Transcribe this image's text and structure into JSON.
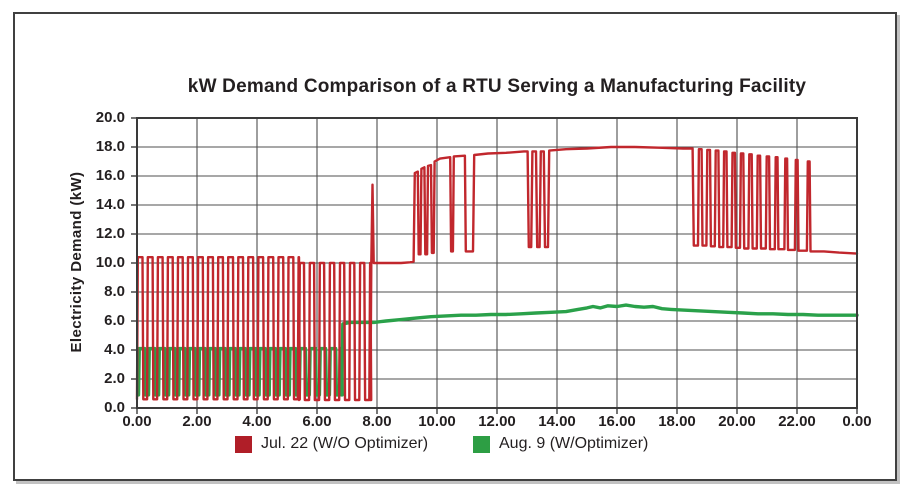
{
  "chart_data": {
    "type": "line",
    "title": "kW Demand Comparison of a RTU Serving a Manufacturing Facility",
    "xlabel": "",
    "ylabel": "Electricity Demand (kW)",
    "x_unit": "hour of day",
    "x_range_hours": [
      0,
      24
    ],
    "ylim": [
      0,
      20
    ],
    "y_tick_step": 2,
    "grid": true,
    "legend_position": "bottom",
    "x_tick_labels": [
      "0.00",
      "2.00",
      "4.00",
      "6.00",
      "8.00",
      "10.00",
      "12.00",
      "14.00",
      "16.00",
      "18.00",
      "20.00",
      "22.00",
      "0.00"
    ],
    "y_tick_labels": [
      "20.0",
      "18.0",
      "16.0",
      "14.0",
      "12.0",
      "10.0",
      "8.0",
      "6.0",
      "4.0",
      "2.0",
      "0.0"
    ],
    "colors": {
      "red_line": "#c1272d",
      "red_swatch": "#b01e28",
      "green_line": "#2aa14a",
      "green_swatch": "#2d9e44",
      "grid": "#4f4f4f",
      "frame": "#3a3a3a",
      "text": "#231f20"
    },
    "series": [
      {
        "name": "Jul. 22 (W/O Optimizer)",
        "color": "#c1272d",
        "swatch": "#b01e28",
        "width": 2.4,
        "z": 2,
        "square_segments": [
          {
            "t0": 0.0,
            "t1": 5.4,
            "period": 0.335,
            "duty": 0.55,
            "high": 10.4,
            "low": 0.6
          },
          {
            "t0": 5.4,
            "t1": 7.78,
            "period": 0.335,
            "duty": 0.5,
            "high": 10.0,
            "low": 0.55
          }
        ],
        "points": [
          [
            7.78,
            0.55
          ],
          [
            7.81,
            10.0
          ],
          [
            7.85,
            15.4
          ],
          [
            7.89,
            10.0
          ],
          [
            8.3,
            10.0
          ],
          [
            8.8,
            10.0
          ],
          [
            9.1,
            10.05
          ],
          [
            9.22,
            10.1
          ],
          [
            9.26,
            16.2
          ],
          [
            9.36,
            16.3
          ],
          [
            9.39,
            10.6
          ],
          [
            9.45,
            10.6
          ],
          [
            9.48,
            16.5
          ],
          [
            9.58,
            16.6
          ],
          [
            9.61,
            10.6
          ],
          [
            9.67,
            10.6
          ],
          [
            9.7,
            16.7
          ],
          [
            9.8,
            16.75
          ],
          [
            9.83,
            10.7
          ],
          [
            9.89,
            10.7
          ],
          [
            9.92,
            17.0
          ],
          [
            10.1,
            17.2
          ],
          [
            10.44,
            17.3
          ],
          [
            10.47,
            10.8
          ],
          [
            10.53,
            10.8
          ],
          [
            10.56,
            17.35
          ],
          [
            10.93,
            17.4
          ],
          [
            10.96,
            10.8
          ],
          [
            11.2,
            10.8
          ],
          [
            11.24,
            17.45
          ],
          [
            11.7,
            17.55
          ],
          [
            12.3,
            17.6
          ],
          [
            12.9,
            17.7
          ],
          [
            13.02,
            17.7
          ],
          [
            13.06,
            11.1
          ],
          [
            13.14,
            11.1
          ],
          [
            13.18,
            17.7
          ],
          [
            13.3,
            17.7
          ],
          [
            13.34,
            11.1
          ],
          [
            13.42,
            11.1
          ],
          [
            13.46,
            17.7
          ],
          [
            13.56,
            17.7
          ],
          [
            13.6,
            11.1
          ],
          [
            13.7,
            11.1
          ],
          [
            13.74,
            17.75
          ],
          [
            14.3,
            17.85
          ],
          [
            15.0,
            17.9
          ],
          [
            15.8,
            18.0
          ],
          [
            16.6,
            18.0
          ],
          [
            17.4,
            17.95
          ],
          [
            18.2,
            17.9
          ],
          [
            18.52,
            17.9
          ],
          [
            18.56,
            11.2
          ],
          [
            18.7,
            11.2
          ],
          [
            18.73,
            17.85
          ],
          [
            18.82,
            17.85
          ],
          [
            18.85,
            11.2
          ],
          [
            18.98,
            11.2
          ],
          [
            19.01,
            17.8
          ],
          [
            19.1,
            17.8
          ],
          [
            19.13,
            11.15
          ],
          [
            19.26,
            11.15
          ],
          [
            19.29,
            17.75
          ],
          [
            19.38,
            17.75
          ],
          [
            19.41,
            11.1
          ],
          [
            19.54,
            11.1
          ],
          [
            19.57,
            17.7
          ],
          [
            19.65,
            17.7
          ],
          [
            19.68,
            11.1
          ],
          [
            19.82,
            11.1
          ],
          [
            19.85,
            17.6
          ],
          [
            19.93,
            17.6
          ],
          [
            19.96,
            11.05
          ],
          [
            20.1,
            11.05
          ],
          [
            20.13,
            17.55
          ],
          [
            20.21,
            17.55
          ],
          [
            20.24,
            11.0
          ],
          [
            20.38,
            11.0
          ],
          [
            20.41,
            17.5
          ],
          [
            20.49,
            17.5
          ],
          [
            20.52,
            11.0
          ],
          [
            20.66,
            11.0
          ],
          [
            20.69,
            17.4
          ],
          [
            20.77,
            17.4
          ],
          [
            20.8,
            11.0
          ],
          [
            20.96,
            11.0
          ],
          [
            20.99,
            17.35
          ],
          [
            21.07,
            17.35
          ],
          [
            21.1,
            10.95
          ],
          [
            21.26,
            10.95
          ],
          [
            21.29,
            17.3
          ],
          [
            21.35,
            17.3
          ],
          [
            21.38,
            10.95
          ],
          [
            21.58,
            10.95
          ],
          [
            21.61,
            17.2
          ],
          [
            21.67,
            17.2
          ],
          [
            21.7,
            10.9
          ],
          [
            21.93,
            10.9
          ],
          [
            21.96,
            17.1
          ],
          [
            22.02,
            17.1
          ],
          [
            22.05,
            10.85
          ],
          [
            22.33,
            10.85
          ],
          [
            22.36,
            17.0
          ],
          [
            22.42,
            17.0
          ],
          [
            22.45,
            10.8
          ],
          [
            22.9,
            10.8
          ],
          [
            23.4,
            10.72
          ],
          [
            24.0,
            10.65
          ]
        ]
      },
      {
        "name": "Aug. 9 (W/Optimizer)",
        "color": "#2aa14a",
        "swatch": "#2d9e44",
        "width": 3.4,
        "z": 1,
        "square_segments": [
          {
            "t0": 0.05,
            "t1": 6.82,
            "period": 0.335,
            "duty": 0.62,
            "high": 4.1,
            "low": 0.9
          }
        ],
        "points": [
          [
            6.82,
            0.9
          ],
          [
            6.86,
            5.8
          ],
          [
            7.1,
            5.9
          ],
          [
            7.5,
            5.9
          ],
          [
            7.9,
            5.9
          ],
          [
            8.3,
            6.0
          ],
          [
            8.8,
            6.1
          ],
          [
            9.3,
            6.2
          ],
          [
            9.8,
            6.3
          ],
          [
            10.3,
            6.35
          ],
          [
            10.8,
            6.4
          ],
          [
            11.3,
            6.4
          ],
          [
            11.8,
            6.45
          ],
          [
            12.3,
            6.45
          ],
          [
            12.8,
            6.5
          ],
          [
            13.3,
            6.55
          ],
          [
            13.8,
            6.6
          ],
          [
            14.3,
            6.65
          ],
          [
            14.7,
            6.8
          ],
          [
            15.0,
            6.9
          ],
          [
            15.2,
            7.0
          ],
          [
            15.45,
            6.9
          ],
          [
            15.7,
            7.05
          ],
          [
            16.0,
            7.0
          ],
          [
            16.3,
            7.1
          ],
          [
            16.6,
            7.0
          ],
          [
            16.9,
            6.95
          ],
          [
            17.2,
            7.0
          ],
          [
            17.5,
            6.85
          ],
          [
            17.8,
            6.8
          ],
          [
            18.2,
            6.75
          ],
          [
            18.7,
            6.7
          ],
          [
            19.2,
            6.65
          ],
          [
            19.7,
            6.6
          ],
          [
            20.2,
            6.55
          ],
          [
            20.7,
            6.5
          ],
          [
            21.2,
            6.5
          ],
          [
            21.7,
            6.45
          ],
          [
            22.2,
            6.45
          ],
          [
            22.7,
            6.4
          ],
          [
            23.2,
            6.4
          ],
          [
            23.6,
            6.4
          ],
          [
            24.0,
            6.4
          ]
        ]
      }
    ]
  }
}
